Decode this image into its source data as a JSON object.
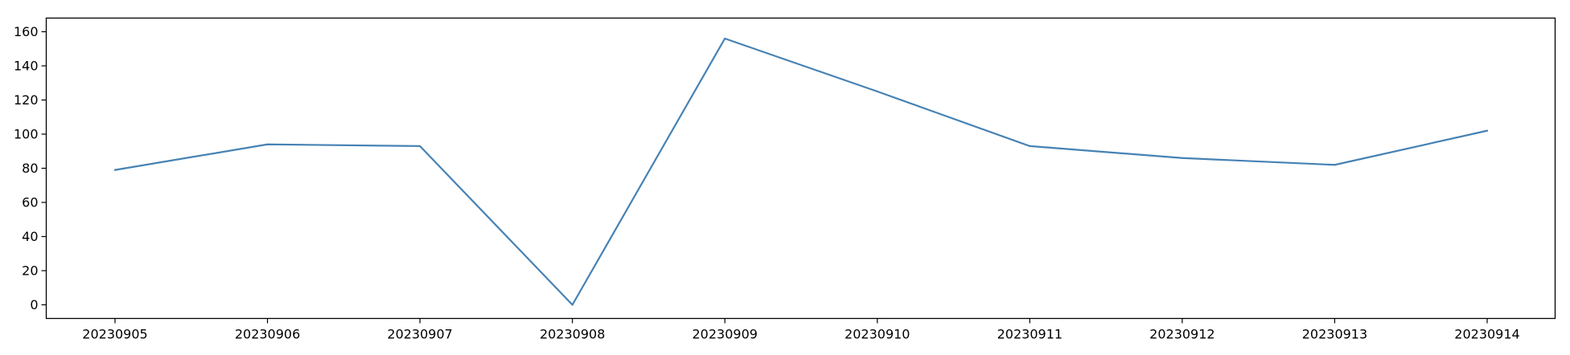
{
  "chart_data": {
    "type": "line",
    "title": "",
    "xlabel": "",
    "ylabel": "",
    "categories": [
      "20230905",
      "20230906",
      "20230907",
      "20230908",
      "20230909",
      "20230910",
      "20230911",
      "20230912",
      "20230913",
      "20230914"
    ],
    "series": [
      {
        "values": [
          79,
          94,
          93,
          0,
          156,
          125,
          93,
          86,
          82,
          102
        ],
        "color": "#4682b4"
      }
    ],
    "ylim": [
      -8,
      164
    ],
    "yticks": [
      0,
      20,
      40,
      60,
      80,
      100,
      120,
      140,
      160
    ],
    "grid": false,
    "legend": "none"
  }
}
